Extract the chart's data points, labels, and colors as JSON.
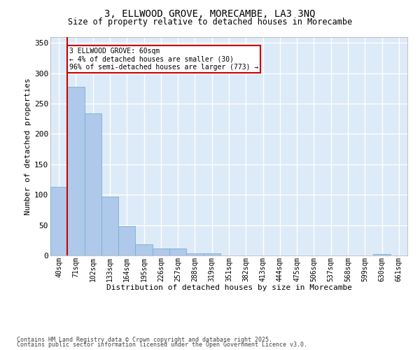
{
  "title_line1": "3, ELLWOOD GROVE, MORECAMBE, LA3 3NQ",
  "title_line2": "Size of property relative to detached houses in Morecambe",
  "xlabel": "Distribution of detached houses by size in Morecambe",
  "ylabel": "Number of detached properties",
  "categories": [
    "40sqm",
    "71sqm",
    "102sqm",
    "133sqm",
    "164sqm",
    "195sqm",
    "226sqm",
    "257sqm",
    "288sqm",
    "319sqm",
    "351sqm",
    "382sqm",
    "413sqm",
    "444sqm",
    "475sqm",
    "506sqm",
    "537sqm",
    "568sqm",
    "599sqm",
    "630sqm",
    "661sqm"
  ],
  "values": [
    113,
    278,
    234,
    97,
    48,
    18,
    12,
    11,
    4,
    4,
    0,
    0,
    0,
    0,
    0,
    0,
    0,
    0,
    0,
    2,
    0
  ],
  "bar_color": "#aec9ea",
  "bar_edge_color": "#7aafd4",
  "ylim_max": 360,
  "yticks": [
    0,
    50,
    100,
    150,
    200,
    250,
    300,
    350
  ],
  "bg_color": "#ddeaf7",
  "grid_color": "#ffffff",
  "red_line_color": "#cc0000",
  "annotation_line1": "3 ELLWOOD GROVE: 60sqm",
  "annotation_line2": "← 4% of detached houses are smaller (30)",
  "annotation_line3": "96% of semi-detached houses are larger (773) →",
  "footer_line1": "Contains HM Land Registry data © Crown copyright and database right 2025.",
  "footer_line2": "Contains public sector information licensed under the Open Government Licence v3.0."
}
